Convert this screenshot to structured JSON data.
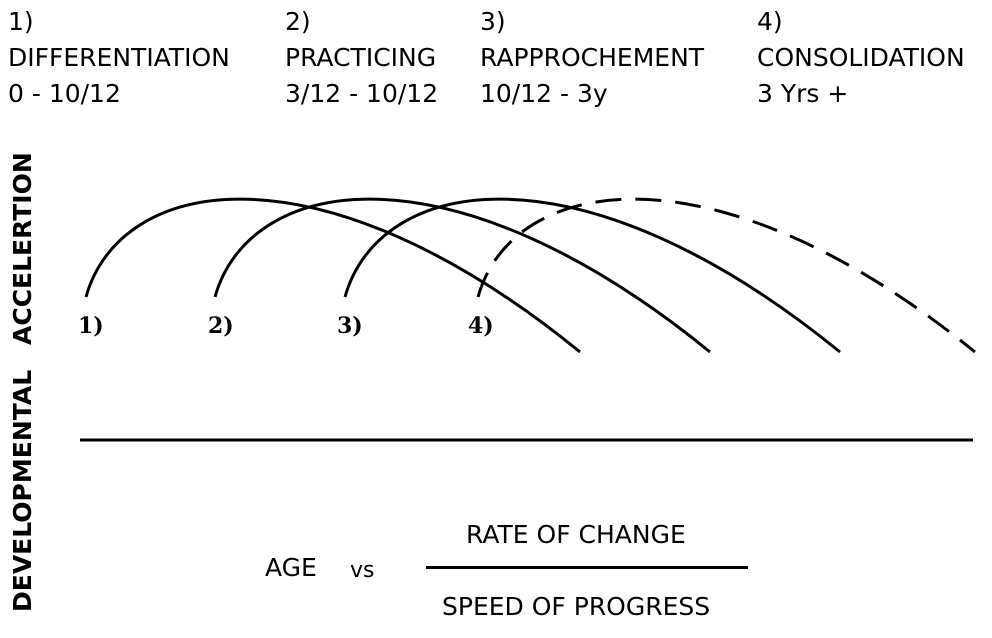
{
  "phases": [
    {
      "number": "1)",
      "name": "DIFFERENTIATION",
      "age": "0 - 10/12"
    },
    {
      "number": "2)",
      "name": "PRACTICING",
      "age": "3/12 - 10/12"
    },
    {
      "number": "3)",
      "name": "RAPPROCHEMENT",
      "age": "10/12 - 3y"
    },
    {
      "number": "4)",
      "name": "CONSOLIDATION",
      "age": "3 Yrs +"
    }
  ],
  "vertical_labels": {
    "top": "ACCELERTION",
    "bottom": "DEVELOPMENTAL"
  },
  "curves": [
    {
      "label": "1)",
      "style": "solid"
    },
    {
      "label": "2)",
      "style": "solid"
    },
    {
      "label": "3)",
      "style": "solid"
    },
    {
      "label": "4)",
      "style": "dashed"
    }
  ],
  "equation": {
    "left": "AGE",
    "operator": "vs",
    "numerator": "RATE OF CHANGE",
    "denominator": "SPEED OF PROGRESS"
  }
}
